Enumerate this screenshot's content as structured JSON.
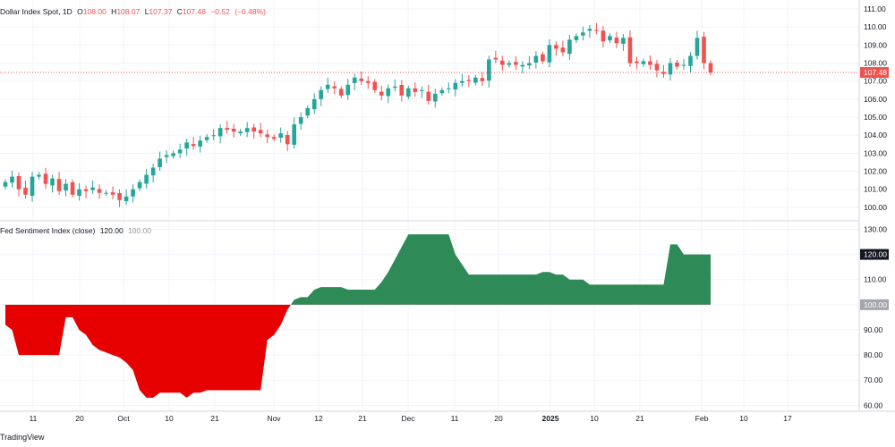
{
  "chart_data": [
    {
      "type": "candlestick",
      "title": "Dollar Index Spot, 1D",
      "ohlc_header": {
        "open_label": "O",
        "open": "108.00",
        "high_label": "H",
        "high": "108.07",
        "low_label": "L",
        "low": "107.37",
        "close_label": "C",
        "close": "107.48",
        "change": "−0.52",
        "change_pct": "(−0.48%)"
      },
      "last_price": "107.48",
      "ylim": [
        99.3,
        111.5
      ],
      "y_ticks": [
        "111.00",
        "110.00",
        "109.00",
        "108.00",
        "107.00",
        "106.00",
        "105.00",
        "104.00",
        "103.00",
        "102.00",
        "101.00",
        "100.00"
      ],
      "colors": {
        "up": "#26a69a",
        "down": "#ef5350",
        "price_line": "#ef5350"
      },
      "series_values_close": [
        101.4,
        101.7,
        101.0,
        100.7,
        101.7,
        101.8,
        101.3,
        101.6,
        100.9,
        101.3,
        100.7,
        101.0,
        100.9,
        101.1,
        100.8,
        100.8,
        100.7,
        100.4,
        100.6,
        101.0,
        101.4,
        101.8,
        102.2,
        102.7,
        102.9,
        103.0,
        103.2,
        103.6,
        103.4,
        103.7,
        103.9,
        104.0,
        104.4,
        104.3,
        104.2,
        104.2,
        104.4,
        104.2,
        104.1,
        103.9,
        103.8,
        104.1,
        103.5,
        104.6,
        105.0,
        105.5,
        106.0,
        106.5,
        106.8,
        106.6,
        106.2,
        106.8,
        107.2,
        107.0,
        106.9,
        106.5,
        106.2,
        106.6,
        106.7,
        106.2,
        106.6,
        106.4,
        106.5,
        105.9,
        106.3,
        106.5,
        106.6,
        106.9,
        107.0,
        107.0,
        107.2,
        107.0,
        108.2,
        108.2,
        107.9,
        108.0,
        107.9,
        107.9,
        108.0,
        108.4,
        108.1,
        109.0,
        108.8,
        108.6,
        109.3,
        109.5,
        109.7,
        109.9,
        109.8,
        109.2,
        109.5,
        109.1,
        109.4,
        108.0,
        108.0,
        108.1,
        107.9,
        107.6,
        107.4,
        108.0,
        107.8,
        107.9,
        108.4,
        109.4,
        108.0,
        107.48
      ]
    },
    {
      "type": "area",
      "title": "Fed Sentiment Index (close)",
      "current_value": "120.00",
      "baseline_value": "100.00",
      "ylim": [
        58,
        133
      ],
      "y_ticks": [
        "130.00",
        "120.00",
        "110.00",
        "100.00",
        "90.00",
        "80.00",
        "70.00",
        "60.00"
      ],
      "colors": {
        "above": "#2e8b57",
        "below": "#e60000"
      },
      "values": [
        92,
        90,
        80,
        80,
        80,
        80,
        80,
        80,
        80,
        95,
        95,
        90,
        88,
        84,
        82,
        81,
        80,
        79,
        77,
        74,
        66,
        63,
        63,
        65,
        65,
        65,
        65,
        63,
        65,
        65,
        66,
        66,
        66,
        66,
        66,
        66,
        66,
        66,
        66,
        86,
        88,
        92,
        98,
        102,
        103,
        103,
        106,
        107,
        107,
        107,
        107,
        106,
        106,
        106,
        106,
        106,
        109,
        113,
        118,
        123,
        128,
        128,
        128,
        128,
        128,
        128,
        128,
        120,
        116,
        112,
        112,
        112,
        112,
        112,
        112,
        112,
        112,
        112,
        112,
        112,
        113,
        113,
        112,
        112,
        110,
        110,
        110,
        108,
        108,
        108,
        108,
        108,
        108,
        108,
        108,
        108,
        108,
        108,
        108,
        124,
        124,
        120,
        120,
        120,
        120,
        120
      ]
    }
  ],
  "x_axis": {
    "ticks": [
      "11",
      "20",
      "Oct",
      "10",
      "21",
      "Nov",
      "12",
      "21",
      "Dec",
      "11",
      "20",
      "2025",
      "10",
      "21",
      "Feb",
      "10",
      "17"
    ],
    "bold": "2025"
  },
  "watermark": "TradingView"
}
